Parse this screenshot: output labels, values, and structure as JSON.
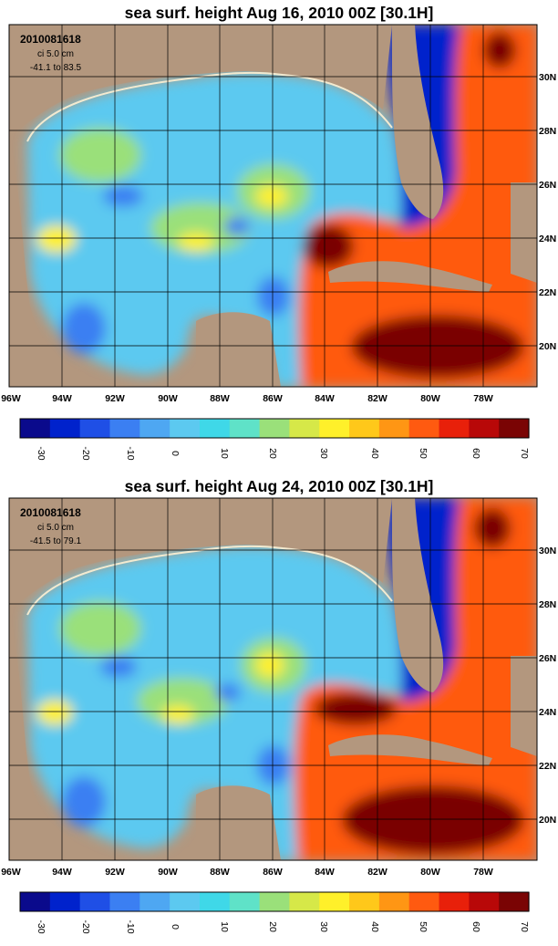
{
  "colors": {
    "land": "#b3977e",
    "coast": "#f3ead0",
    "grid": "#000000",
    "scale": [
      "#0a0a8c",
      "#0022cc",
      "#1f4fe6",
      "#3b7ff2",
      "#4ea7f2",
      "#5cc9f0",
      "#3fd8e8",
      "#5fe2c8",
      "#9ae07a",
      "#d6e848",
      "#fff02a",
      "#ffc81a",
      "#ff9614",
      "#ff5a10",
      "#e8200a",
      "#b80808",
      "#7a0404"
    ]
  },
  "lon_labels": [
    "96W",
    "94W",
    "92W",
    "90W",
    "88W",
    "86W",
    "84W",
    "82W",
    "80W",
    "78W"
  ],
  "lat_labels": [
    "30N",
    "28N",
    "26N",
    "24N",
    "22N",
    "20N"
  ],
  "colorbar_ticks": [
    "-30",
    "-20",
    "-10",
    "0",
    "10",
    "20",
    "30",
    "40",
    "50",
    "60",
    "70"
  ],
  "panels": [
    {
      "title": "sea surf. height    Aug 16, 2010 00Z    [30.1H]",
      "info": {
        "date": "2010081618",
        "ci": "ci 5.0 cm",
        "range": "-41.1  to  83.5"
      }
    },
    {
      "title": "sea surf. height    Aug 24, 2010 00Z    [30.1H]",
      "info": {
        "date": "2010081618",
        "ci": "ci 5.0 cm",
        "range": "-41.5  to  79.1"
      }
    }
  ]
}
